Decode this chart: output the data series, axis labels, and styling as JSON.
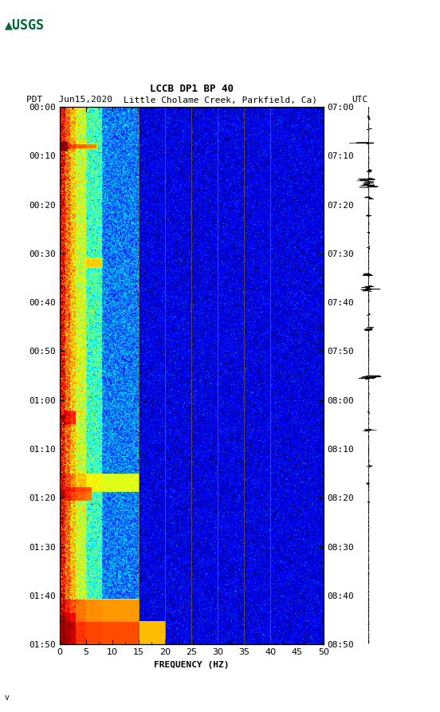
{
  "title_line1": "LCCB DP1 BP 40",
  "title_line2_left": "PDT   Jun15,2020",
  "title_line2_middle": "Little Cholame Creek, Parkfield, Ca)",
  "title_line2_right": "UTC",
  "xlabel": "FREQUENCY (HZ)",
  "freq_min": 0,
  "freq_max": 50,
  "freq_ticks": [
    0,
    5,
    10,
    15,
    20,
    25,
    30,
    35,
    40,
    45,
    50
  ],
  "left_time_ticks": [
    "00:00",
    "00:10",
    "00:20",
    "00:30",
    "00:40",
    "00:50",
    "01:00",
    "01:10",
    "01:20",
    "01:30",
    "01:40",
    "01:50"
  ],
  "right_time_ticks": [
    "07:00",
    "07:10",
    "07:20",
    "07:30",
    "07:40",
    "07:50",
    "08:00",
    "08:10",
    "08:20",
    "08:30",
    "08:40",
    "08:50"
  ],
  "n_time": 1200,
  "n_freq": 500,
  "bg_color": "#ffffff",
  "vertical_lines_freq": [
    15,
    20,
    25,
    30,
    35,
    40
  ],
  "vertical_line_color": "#8B6914",
  "usgs_logo_color": "#006633"
}
